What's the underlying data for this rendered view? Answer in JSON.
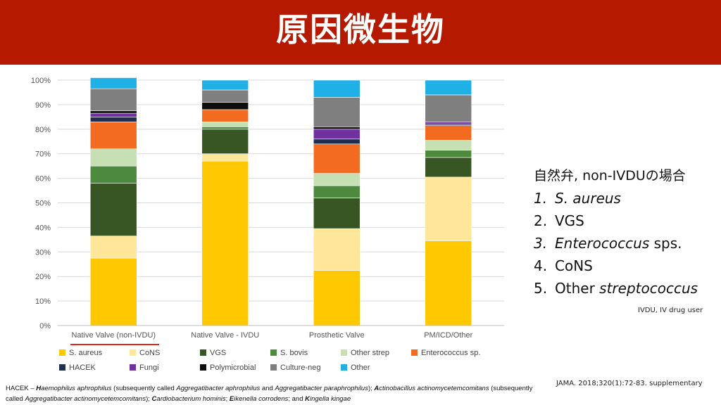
{
  "slide": {
    "title": "原因微生物"
  },
  "chart_data": {
    "type": "bar",
    "stacked": true,
    "categories": [
      "Native Valve (non-IVDU)",
      "Native Valve - IVDU",
      "Prosthetic Valve",
      "PM/ICD/Other"
    ],
    "ylim": [
      0,
      100
    ],
    "yticks": [
      "0%",
      "10%",
      "20%",
      "30%",
      "40%",
      "50%",
      "60%",
      "70%",
      "80%",
      "90%",
      "100%"
    ],
    "ytick_values": [
      0,
      10,
      20,
      30,
      40,
      50,
      60,
      70,
      80,
      90,
      100
    ],
    "grid": true,
    "legend_position": "bottom",
    "series": [
      {
        "name": "S. aureus",
        "color": "#ffc800",
        "values": [
          27.5,
          67,
          22.5,
          34.5
        ]
      },
      {
        "name": "CoNS",
        "color": "#ffe699",
        "values": [
          9,
          3,
          17,
          26
        ]
      },
      {
        "name": "VGS",
        "color": "#375623",
        "values": [
          21.5,
          10,
          12.5,
          8
        ]
      },
      {
        "name": "S. bovis",
        "color": "#4e8a3e",
        "values": [
          7,
          1,
          5,
          3
        ]
      },
      {
        "name": "Other strep",
        "color": "#c6e0b4",
        "values": [
          7,
          2,
          5,
          4
        ]
      },
      {
        "name": "Enterococcus sp.",
        "color": "#f26b21",
        "values": [
          11,
          5,
          12,
          6
        ]
      },
      {
        "name": "HACEK",
        "color": "#1f2d50",
        "values": [
          2,
          0,
          2,
          0.5
        ]
      },
      {
        "name": "Fungi",
        "color": "#7030a0",
        "values": [
          1.5,
          0,
          4,
          1
        ]
      },
      {
        "name": "Polymicrobial",
        "color": "#0d0d0d",
        "values": [
          1,
          3,
          1,
          0
        ]
      },
      {
        "name": "Culture-neg",
        "color": "#7f7f7f",
        "values": [
          9,
          5,
          12,
          11
        ]
      },
      {
        "name": "Other",
        "color": "#1fb1e6",
        "values": [
          4.5,
          4,
          7,
          6
        ]
      }
    ]
  },
  "ranking": {
    "heading": "自然弁, non-IVDUの場合",
    "items": [
      {
        "num": "1.",
        "parts": [
          {
            "text": "S. aureus",
            "italic": true
          }
        ]
      },
      {
        "num": "2.",
        "parts": [
          {
            "text": "VGS",
            "italic": false
          }
        ]
      },
      {
        "num": "3.",
        "parts": [
          {
            "text": "Enterococcus",
            "italic": true
          },
          {
            "text": " sps.",
            "italic": false
          }
        ]
      },
      {
        "num": "4.",
        "parts": [
          {
            "text": "CoNS",
            "italic": false
          }
        ]
      },
      {
        "num": "5.",
        "parts": [
          {
            "text": "Other ",
            "italic": false
          },
          {
            "text": "streptococcus",
            "italic": true
          }
        ]
      }
    ]
  },
  "notes": {
    "ivdu": "IVDU, IV drug user",
    "citation": "JAMA. 2018;320(1):72-83. supplementary"
  },
  "footnote": {
    "hacek": [
      {
        "text": "HACEK – ",
        "bold": false,
        "italic": false
      },
      {
        "text": "H",
        "bold": true,
        "italic": true
      },
      {
        "text": "aemophilus aphrophilus",
        "bold": false,
        "italic": true
      },
      {
        "text": " (subsequently called ",
        "bold": false,
        "italic": false
      },
      {
        "text": "Aggregatibacter aphrophilus",
        "bold": false,
        "italic": true
      },
      {
        "text": " and ",
        "bold": false,
        "italic": false
      },
      {
        "text": "Aggregatibacter paraphrophilus",
        "bold": false,
        "italic": true
      },
      {
        "text": "); ",
        "bold": false,
        "italic": false
      },
      {
        "text": "A",
        "bold": true,
        "italic": true
      },
      {
        "text": "ctinobacillus actinomycetemcomitans",
        "bold": false,
        "italic": true
      },
      {
        "text": " (subsequently called ",
        "bold": false,
        "italic": false
      },
      {
        "text": "Aggregatibacter actinomycetemcomitans",
        "bold": false,
        "italic": true
      },
      {
        "text": "); ",
        "bold": false,
        "italic": false
      },
      {
        "text": "C",
        "bold": true,
        "italic": true
      },
      {
        "text": "ardiobacterium hominis",
        "bold": false,
        "italic": true
      },
      {
        "text": "; ",
        "bold": false,
        "italic": false
      },
      {
        "text": "E",
        "bold": true,
        "italic": true
      },
      {
        "text": "ikenella corrodens",
        "bold": false,
        "italic": true
      },
      {
        "text": "; and ",
        "bold": false,
        "italic": false
      },
      {
        "text": "K",
        "bold": true,
        "italic": true
      },
      {
        "text": "ingella kingae",
        "bold": false,
        "italic": true
      }
    ]
  }
}
